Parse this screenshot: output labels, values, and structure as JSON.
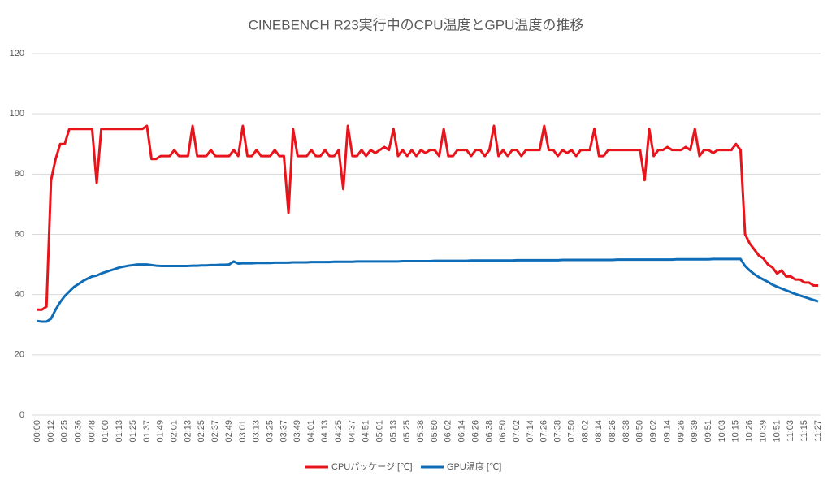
{
  "chart_data": {
    "type": "line",
    "title": "CINEBENCH R23実行中のCPU温度とGPU温度の推移",
    "categories": [
      "00:00",
      null,
      null,
      "00:12",
      null,
      null,
      "00:25",
      null,
      null,
      "00:36",
      null,
      null,
      "00:48",
      null,
      null,
      "01:00",
      null,
      null,
      "01:13",
      null,
      null,
      "01:25",
      null,
      null,
      "01:37",
      null,
      null,
      "01:49",
      null,
      null,
      "02:01",
      null,
      null,
      "02:13",
      null,
      null,
      "02:25",
      null,
      null,
      "02:37",
      null,
      null,
      "02:49",
      null,
      null,
      "03:01",
      null,
      null,
      "03:13",
      null,
      null,
      "03:25",
      null,
      null,
      "03:37",
      null,
      null,
      "03:49",
      null,
      null,
      "04:01",
      null,
      null,
      "04:13",
      null,
      null,
      "04:25",
      null,
      null,
      "04:37",
      null,
      null,
      "04:51",
      null,
      null,
      "05:01",
      null,
      null,
      "05:13",
      null,
      null,
      "05:25",
      null,
      null,
      "05:38",
      null,
      null,
      "05:50",
      null,
      null,
      "06:02",
      null,
      null,
      "06:14",
      null,
      null,
      "06:26",
      null,
      null,
      "06:38",
      null,
      null,
      "06:50",
      null,
      null,
      "07:02",
      null,
      null,
      "07:14",
      null,
      null,
      "07:26",
      null,
      null,
      "07:38",
      null,
      null,
      "07:50",
      null,
      null,
      "08:02",
      null,
      null,
      "08:14",
      null,
      null,
      "08:26",
      null,
      null,
      "08:38",
      null,
      null,
      "08:50",
      null,
      null,
      "09:02",
      null,
      null,
      "09:14",
      null,
      null,
      "09:26",
      null,
      null,
      "09:39",
      null,
      null,
      "09:51",
      null,
      null,
      "10:03",
      null,
      null,
      "10:15",
      null,
      null,
      "10:26",
      null,
      null,
      "10:39",
      null,
      null,
      "10:51",
      null,
      null,
      "11:03",
      null,
      null,
      "11:15",
      null,
      null,
      "11:27"
    ],
    "series": [
      {
        "name": "CPUパッケージ [℃]",
        "color": "#e8141c",
        "values": [
          35,
          35,
          36,
          78,
          85,
          90,
          90,
          95,
          95,
          95,
          95,
          95,
          95,
          77,
          95,
          95,
          95,
          95,
          95,
          95,
          95,
          95,
          95,
          95,
          96,
          85,
          85,
          86,
          86,
          86,
          88,
          86,
          86,
          86,
          96,
          86,
          86,
          86,
          88,
          86,
          86,
          86,
          86,
          88,
          86,
          96,
          86,
          86,
          88,
          86,
          86,
          86,
          88,
          86,
          86,
          67,
          95,
          86,
          86,
          86,
          88,
          86,
          86,
          88,
          86,
          86,
          88,
          75,
          96,
          86,
          86,
          88,
          86,
          88,
          87,
          88,
          89,
          88,
          95,
          86,
          88,
          86,
          88,
          86,
          88,
          87,
          88,
          88,
          86,
          95,
          86,
          86,
          88,
          88,
          88,
          86,
          88,
          88,
          86,
          88,
          96,
          86,
          88,
          86,
          88,
          88,
          86,
          88,
          88,
          88,
          88,
          96,
          88,
          88,
          86,
          88,
          87,
          88,
          86,
          88,
          88,
          88,
          95,
          86,
          86,
          88,
          88,
          88,
          88,
          88,
          88,
          88,
          88,
          78,
          95,
          86,
          88,
          88,
          89,
          88,
          88,
          88,
          89,
          88,
          95,
          86,
          88,
          88,
          87,
          88,
          88,
          88,
          88,
          90,
          88,
          60,
          57,
          55,
          53,
          52,
          50,
          49,
          47,
          48,
          46,
          46,
          45,
          45,
          44,
          44,
          43,
          43
        ]
      },
      {
        "name": "GPU温度 [℃]",
        "color": "#0f6cb6",
        "values": [
          31.2,
          31,
          31,
          32,
          35,
          37.5,
          39.5,
          41,
          42.5,
          43.5,
          44.5,
          45.3,
          46,
          46.3,
          47,
          47.5,
          48,
          48.5,
          49,
          49.3,
          49.6,
          49.8,
          50,
          50,
          50,
          49.8,
          49.6,
          49.5,
          49.5,
          49.5,
          49.5,
          49.5,
          49.5,
          49.5,
          49.6,
          49.6,
          49.7,
          49.7,
          49.8,
          49.8,
          49.9,
          49.9,
          50,
          51,
          50.3,
          50.4,
          50.4,
          50.4,
          50.5,
          50.5,
          50.5,
          50.5,
          50.6,
          50.6,
          50.6,
          50.6,
          50.7,
          50.7,
          50.7,
          50.7,
          50.8,
          50.8,
          50.8,
          50.8,
          50.8,
          50.9,
          50.9,
          50.9,
          50.9,
          50.9,
          51,
          51,
          51,
          51,
          51,
          51,
          51,
          51,
          51,
          51,
          51.1,
          51.1,
          51.1,
          51.1,
          51.1,
          51.1,
          51.1,
          51.2,
          51.2,
          51.2,
          51.2,
          51.2,
          51.2,
          51.2,
          51.2,
          51.3,
          51.3,
          51.3,
          51.3,
          51.3,
          51.3,
          51.3,
          51.3,
          51.3,
          51.3,
          51.4,
          51.4,
          51.4,
          51.4,
          51.4,
          51.4,
          51.4,
          51.4,
          51.4,
          51.4,
          51.5,
          51.5,
          51.5,
          51.5,
          51.5,
          51.5,
          51.5,
          51.5,
          51.5,
          51.5,
          51.5,
          51.5,
          51.6,
          51.6,
          51.6,
          51.6,
          51.6,
          51.6,
          51.6,
          51.6,
          51.6,
          51.6,
          51.6,
          51.6,
          51.6,
          51.7,
          51.7,
          51.7,
          51.7,
          51.7,
          51.7,
          51.7,
          51.7,
          51.8,
          51.8,
          51.8,
          51.8,
          51.8,
          51.8,
          51.8,
          49.5,
          48,
          46.8,
          45.8,
          45,
          44.2,
          43.3,
          42.6,
          42,
          41.4,
          40.8,
          40.2,
          39.7,
          39.2,
          38.7,
          38.2,
          37.7
        ]
      }
    ],
    "ylim": [
      0,
      120
    ],
    "yticks": [
      0,
      20,
      40,
      60,
      80,
      100,
      120
    ],
    "grid": true,
    "legend": "bottom"
  }
}
